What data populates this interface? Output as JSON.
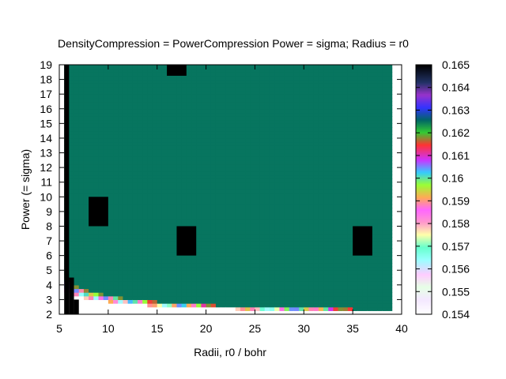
{
  "chart_data": {
    "type": "heatmap",
    "title": "DensityCompression = PowerCompression Power = sigma; Radius = r0",
    "xlabel": "Radii, r0 / bohr",
    "ylabel": "Power (= sigma)",
    "xlim": [
      5,
      40
    ],
    "ylim": [
      2,
      19
    ],
    "x_ticks": [
      "5",
      "10",
      "15",
      "20",
      "25",
      "30",
      "35",
      "40"
    ],
    "y_ticks": [
      "2",
      "3",
      "4",
      "5",
      "6",
      "7",
      "8",
      "9",
      "10",
      "11",
      "12",
      "13",
      "14",
      "15",
      "16",
      "17",
      "18",
      "19"
    ],
    "grid": {
      "x_start": 5.5,
      "x_step": 0.5,
      "x_count": 67,
      "y_start": 2,
      "y_step": 0.25,
      "y_count": 69
    },
    "value_model": {
      "description_free": true,
      "plateau_value": 0.1625,
      "band_offsets": [
        0.7,
        0.15
      ],
      "curve_constant": 8.6
    },
    "colorbar": {
      "range": [
        0.154,
        0.165
      ],
      "ticks": [
        "0.154",
        "0.155",
        "0.156",
        "0.157",
        "0.158",
        "0.159",
        "0.16",
        "0.161",
        "0.162",
        "0.163",
        "0.164",
        "0.165"
      ],
      "palette_stops": [
        {
          "v": 0.0,
          "color": "#ffffff"
        },
        {
          "v": 0.06,
          "color": "#f4e8ff"
        },
        {
          "v": 0.11,
          "color": "#e6ffe6"
        },
        {
          "v": 0.16,
          "color": "#ffccff"
        },
        {
          "v": 0.22,
          "color": "#99ffff"
        },
        {
          "v": 0.27,
          "color": "#66ffcc"
        },
        {
          "v": 0.32,
          "color": "#ffffaa"
        },
        {
          "v": 0.37,
          "color": "#ff99cc"
        },
        {
          "v": 0.42,
          "color": "#ff66ff"
        },
        {
          "v": 0.47,
          "color": "#ffaa55"
        },
        {
          "v": 0.52,
          "color": "#99ff33"
        },
        {
          "v": 0.57,
          "color": "#33ccff"
        },
        {
          "v": 0.62,
          "color": "#cc33ff"
        },
        {
          "v": 0.68,
          "color": "#ff3333"
        },
        {
          "v": 0.73,
          "color": "#33cc33"
        },
        {
          "v": 0.78,
          "color": "#006666"
        },
        {
          "v": 0.83,
          "color": "#3333ff"
        },
        {
          "v": 0.88,
          "color": "#9933cc"
        },
        {
          "v": 0.93,
          "color": "#223366"
        },
        {
          "v": 1.0,
          "color": "#000000"
        }
      ]
    },
    "missing_regions": [
      {
        "x": [
          5.5,
          6.0
        ],
        "y": [
          2.0,
          19.0
        ]
      },
      {
        "x": [
          6.0,
          6.5
        ],
        "y": [
          2.0,
          4.5
        ]
      },
      {
        "x": [
          6.5,
          7.0
        ],
        "y": [
          2.0,
          3.0
        ]
      },
      {
        "x": [
          16.0,
          18.0
        ],
        "y": [
          18.25,
          19.0
        ]
      },
      {
        "x": [
          8.0,
          10.0
        ],
        "y": [
          8.0,
          10.0
        ]
      },
      {
        "x": [
          17.0,
          19.0
        ],
        "y": [
          6.0,
          8.0
        ]
      },
      {
        "x": [
          35.0,
          37.0
        ],
        "y": [
          6.0,
          8.0
        ]
      }
    ],
    "colors": {
      "missing": "#000000",
      "background": "#ffffff"
    }
  }
}
